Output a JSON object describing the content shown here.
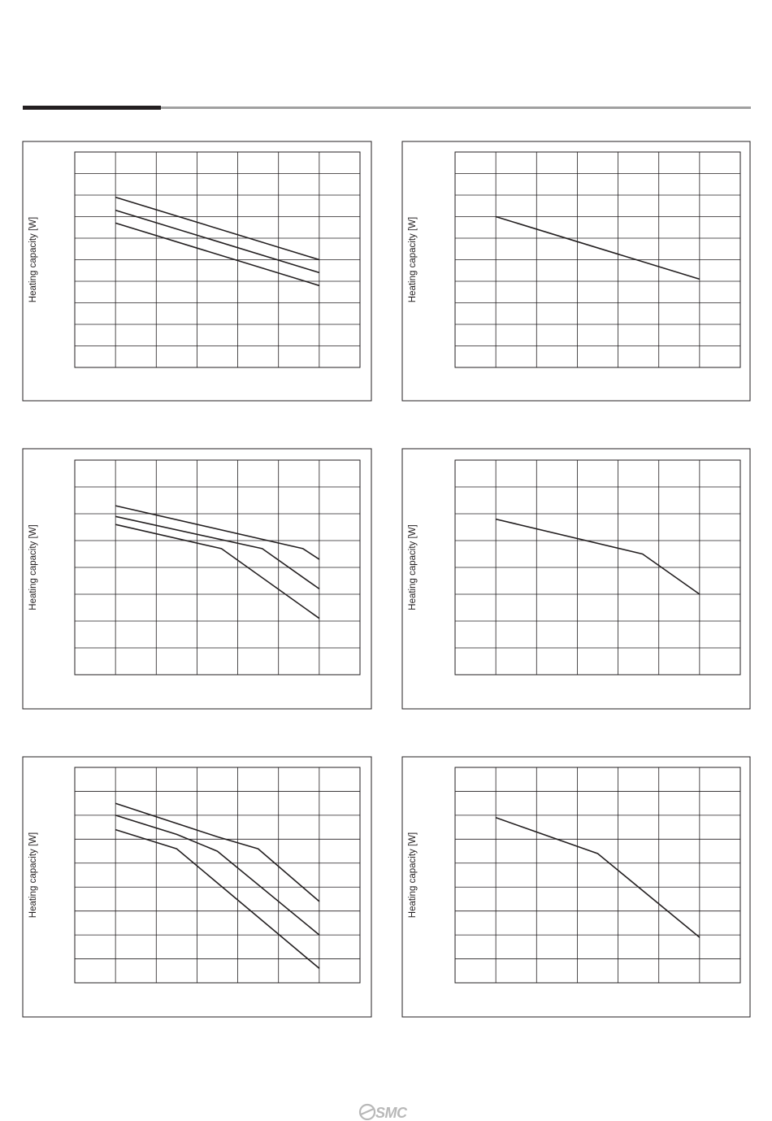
{
  "brand": {
    "logo_text": "SMC"
  },
  "chart_data": [
    {
      "type": "line",
      "ylabel": "Heating capacity [W]",
      "xlabel": "",
      "xlim": [
        0,
        7
      ],
      "ylim": [
        0,
        10
      ],
      "grid": true,
      "series": [
        {
          "values": [
            [
              1,
              7.9
            ],
            [
              6,
              5.0
            ]
          ]
        },
        {
          "values": [
            [
              1,
              7.3
            ],
            [
              6,
              4.4
            ]
          ]
        },
        {
          "values": [
            [
              1,
              6.7
            ],
            [
              6,
              3.8
            ]
          ]
        }
      ]
    },
    {
      "type": "line",
      "ylabel": "Heating capacity [W]",
      "xlabel": "",
      "xlim": [
        0,
        7
      ],
      "ylim": [
        0,
        10
      ],
      "grid": true,
      "series": [
        {
          "values": [
            [
              1,
              7.0
            ],
            [
              6,
              4.1
            ]
          ]
        }
      ]
    },
    {
      "type": "line",
      "ylabel": "Heating capacity [W]",
      "xlabel": "",
      "xlim": [
        0,
        7
      ],
      "ylim": [
        0,
        8
      ],
      "grid": true,
      "series": [
        {
          "values": [
            [
              1,
              6.3
            ],
            [
              5.6,
              4.7
            ],
            [
              6,
              4.3
            ]
          ]
        },
        {
          "values": [
            [
              1,
              5.9
            ],
            [
              4.6,
              4.7
            ],
            [
              6,
              3.2
            ]
          ]
        },
        {
          "values": [
            [
              1,
              5.6
            ],
            [
              3.6,
              4.7
            ],
            [
              6,
              2.1
            ]
          ]
        }
      ]
    },
    {
      "type": "line",
      "ylabel": "Heating capacity [W]",
      "xlabel": "",
      "xlim": [
        0,
        7
      ],
      "ylim": [
        0,
        8
      ],
      "grid": true,
      "series": [
        {
          "values": [
            [
              1,
              5.8
            ],
            [
              4.6,
              4.5
            ],
            [
              6,
              3.0
            ]
          ]
        }
      ]
    },
    {
      "type": "line",
      "ylabel": "Heating capacity [W]",
      "xlabel": "",
      "xlim": [
        0,
        7
      ],
      "ylim": [
        0,
        9
      ],
      "grid": true,
      "series": [
        {
          "values": [
            [
              1,
              7.5
            ],
            [
              3.5,
              6.1
            ],
            [
              4.5,
              5.6
            ],
            [
              6,
              3.4
            ]
          ]
        },
        {
          "values": [
            [
              1,
              7.0
            ],
            [
              2.5,
              6.2
            ],
            [
              3.5,
              5.5
            ],
            [
              6,
              2.0
            ]
          ]
        },
        {
          "values": [
            [
              1,
              6.4
            ],
            [
              2.5,
              5.6
            ],
            [
              6,
              0.6
            ]
          ]
        }
      ]
    },
    {
      "type": "line",
      "ylabel": "Heating capacity [W]",
      "xlabel": "",
      "xlim": [
        0,
        7
      ],
      "ylim": [
        0,
        9
      ],
      "grid": true,
      "series": [
        {
          "values": [
            [
              1,
              6.9
            ],
            [
              3.5,
              5.4
            ],
            [
              6,
              1.9
            ]
          ]
        }
      ]
    }
  ]
}
